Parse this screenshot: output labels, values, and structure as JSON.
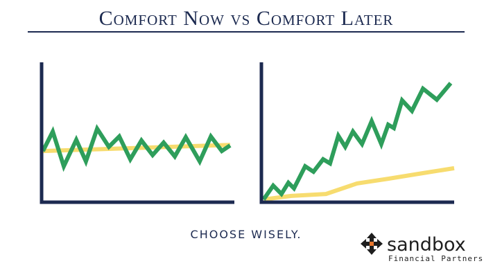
{
  "title": "Comfort Now vs Comfort Later",
  "caption": "CHOOSE WISELY.",
  "logo": {
    "name": "sandbox",
    "tagline": "Financial Partners"
  },
  "chart_data": [
    {
      "type": "line",
      "xlim": [
        0,
        100
      ],
      "ylim": [
        0,
        100
      ],
      "series": [
        {
          "color": "#f7dc6f",
          "x": [
            0.7,
            97.8
          ],
          "values": [
            36.6,
            41
          ]
        },
        {
          "color": "#2e9e5b",
          "x": [
            0.7,
            5.8,
            11.5,
            18,
            23,
            28.8,
            34.9,
            40.3,
            46,
            51.8,
            57.6,
            63.3,
            69.1,
            74.8,
            82,
            87.8,
            93.5,
            97.8
          ],
          "values": [
            36.6,
            50.5,
            25.7,
            44.6,
            29.2,
            52.5,
            39.6,
            47,
            30.7,
            44.1,
            33.7,
            42.6,
            32.7,
            46.5,
            29.2,
            47,
            36.6,
            40.6
          ]
        }
      ]
    },
    {
      "type": "line",
      "xlim": [
        0,
        100
      ],
      "ylim": [
        0,
        100
      ],
      "series": [
        {
          "color": "#f7dc6f",
          "x": [
            1.1,
            15.5,
            33.5,
            49.6,
            65.8,
            83.8,
            100
          ],
          "values": [
            2,
            4.5,
            5.9,
            13.4,
            16.8,
            20.8,
            24.3
          ]
        },
        {
          "color": "#2e9e5b",
          "x": [
            1.1,
            6.1,
            10.4,
            14,
            16.9,
            22.7,
            27,
            32,
            35.6,
            39.9,
            43.5,
            47.5,
            52.2,
            57.2,
            62.2,
            65.8,
            68.7,
            73,
            78.1,
            83.8,
            91,
            98.2
          ],
          "values": [
            2,
            11.9,
            5.9,
            13.9,
            9.9,
            25.7,
            21.8,
            30.7,
            27.7,
            47.5,
            39.6,
            50.5,
            41.6,
            57.9,
            41.6,
            55.4,
            53,
            72.8,
            65.3,
            81.2,
            73.3,
            85.1
          ]
        }
      ]
    }
  ]
}
